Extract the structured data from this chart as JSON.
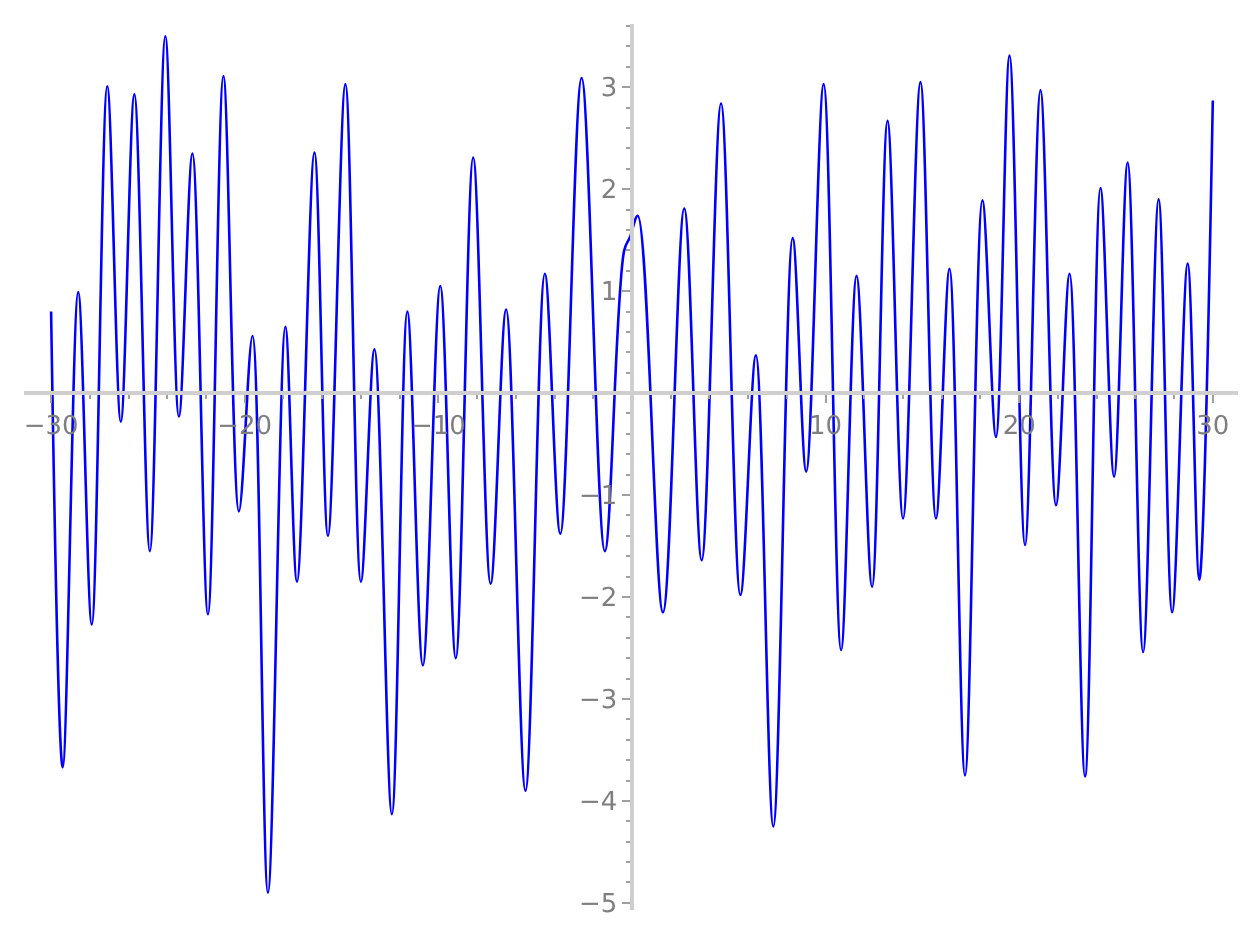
{
  "chart_data": {
    "type": "line",
    "x": [
      -30,
      -29.4,
      -28.6,
      -27.9,
      -27.1,
      -26.4,
      -25.7,
      -24.9,
      -24.1,
      -23.4,
      -22.7,
      -21.9,
      -21.1,
      -20.3,
      -19.6,
      -18.8,
      -17.9,
      -17.3,
      -16.4,
      -15.7,
      -14.8,
      -14.0,
      -13.3,
      -12.4,
      -11.6,
      -10.8,
      -9.9,
      -9.1,
      -8.2,
      -7.3,
      -6.5,
      -5.5,
      -4.5,
      -3.7,
      -2.6,
      -1.4,
      -0.4,
      -0.1,
      0.3,
      1.6,
      2.7,
      3.6,
      4.6,
      5.6,
      6.4,
      7.3,
      8.3,
      9.0,
      9.9,
      10.8,
      11.6,
      12.4,
      13.2,
      14.0,
      14.9,
      15.7,
      16.4,
      17.2,
      18.1,
      18.8,
      19.5,
      20.3,
      21.1,
      21.9,
      22.6,
      23.4,
      24.2,
      24.9,
      25.6,
      26.4,
      27.2,
      27.9,
      28.7,
      29.3,
      30
    ],
    "series": [
      {
        "color": "#0000ff",
        "values": [
          0.8,
          -3.67,
          0.99,
          -2.27,
          3.01,
          -0.28,
          2.93,
          -1.55,
          3.5,
          -0.23,
          2.35,
          -2.17,
          3.11,
          -1.16,
          0.56,
          -4.9,
          0.65,
          -1.85,
          2.36,
          -1.4,
          3.03,
          -1.85,
          0.43,
          -4.13,
          0.8,
          -2.67,
          1.05,
          -2.6,
          2.31,
          -1.87,
          0.82,
          -3.9,
          1.17,
          -1.38,
          3.09,
          -1.55,
          1.4,
          1.53,
          1.74,
          -2.15,
          1.81,
          -1.64,
          2.84,
          -1.98,
          0.37,
          -4.25,
          1.52,
          -0.77,
          3.03,
          -2.52,
          1.15,
          -1.9,
          2.67,
          -1.23,
          3.05,
          -1.23,
          1.22,
          -3.75,
          1.89,
          -0.43,
          3.31,
          -1.49,
          2.97,
          -1.1,
          1.17,
          -3.76,
          2.01,
          -0.82,
          2.26,
          -2.54,
          1.9,
          -2.15,
          1.27,
          -1.83,
          2.87
        ]
      }
    ],
    "xlim": [
      -31.4,
      31.3
    ],
    "xticks": [
      -30,
      {
        "value": -28,
        "label": null
      },
      {
        "value": -26,
        "label": null
      },
      {
        "value": -24,
        "label": null
      },
      {
        "value": -22,
        "label": null
      },
      -20,
      {
        "value": -18,
        "label": null
      },
      {
        "value": -16,
        "label": null
      },
      {
        "value": -14,
        "label": null
      },
      {
        "value": -12,
        "label": null
      },
      -10,
      {
        "value": -8,
        "label": null
      },
      {
        "value": -6,
        "label": null
      },
      {
        "value": -4,
        "label": null
      },
      {
        "value": -2,
        "label": null
      },
      {
        "value": 2,
        "label": null
      },
      {
        "value": 4,
        "label": null
      },
      {
        "value": 6,
        "label": null
      },
      {
        "value": 8,
        "label": null
      },
      10,
      {
        "value": 12,
        "label": null
      },
      {
        "value": 14,
        "label": null
      },
      {
        "value": 16,
        "label": null
      },
      {
        "value": 18,
        "label": null
      },
      20,
      {
        "value": 22,
        "label": null
      },
      {
        "value": 24,
        "label": null
      },
      {
        "value": 26,
        "label": null
      },
      {
        "value": 28,
        "label": null
      },
      30
    ],
    "ylim": [
      -5.07,
      3.62
    ],
    "yticks": [
      -5,
      {
        "value": -4.8,
        "label": null
      },
      {
        "value": -4.6,
        "label": null
      },
      {
        "value": -4.4,
        "label": null
      },
      {
        "value": -4.2,
        "label": null
      },
      -4,
      {
        "value": -3.8,
        "label": null
      },
      {
        "value": -3.6,
        "label": null
      },
      {
        "value": -3.4,
        "label": null
      },
      {
        "value": -3.2,
        "label": null
      },
      -3,
      {
        "value": -2.8,
        "label": null
      },
      {
        "value": -2.6,
        "label": null
      },
      {
        "value": -2.4,
        "label": null
      },
      {
        "value": -2.2,
        "label": null
      },
      -2,
      {
        "value": -1.8,
        "label": null
      },
      {
        "value": -1.6,
        "label": null
      },
      {
        "value": -1.4,
        "label": null
      },
      {
        "value": -1.2,
        "label": null
      },
      -1,
      {
        "value": -0.8,
        "label": null
      },
      {
        "value": -0.6,
        "label": null
      },
      {
        "value": -0.4,
        "label": null
      },
      {
        "value": -0.2,
        "label": null
      },
      {
        "value": 0.2,
        "label": null
      },
      {
        "value": 0.4,
        "label": null
      },
      {
        "value": 0.6,
        "label": null
      },
      {
        "value": 0.8,
        "label": null
      },
      1,
      {
        "value": 1.2,
        "label": null
      },
      {
        "value": 1.4,
        "label": null
      },
      {
        "value": 1.6,
        "label": null
      },
      {
        "value": 1.8,
        "label": null
      },
      2,
      {
        "value": 2.2,
        "label": null
      },
      {
        "value": 2.4,
        "label": null
      },
      {
        "value": 2.6,
        "label": null
      },
      {
        "value": 2.8,
        "label": null
      },
      3,
      {
        "value": 3.2,
        "label": null
      },
      {
        "value": 3.4,
        "label": null
      },
      {
        "value": 3.6,
        "label": null
      }
    ],
    "line_style": "solid"
  }
}
